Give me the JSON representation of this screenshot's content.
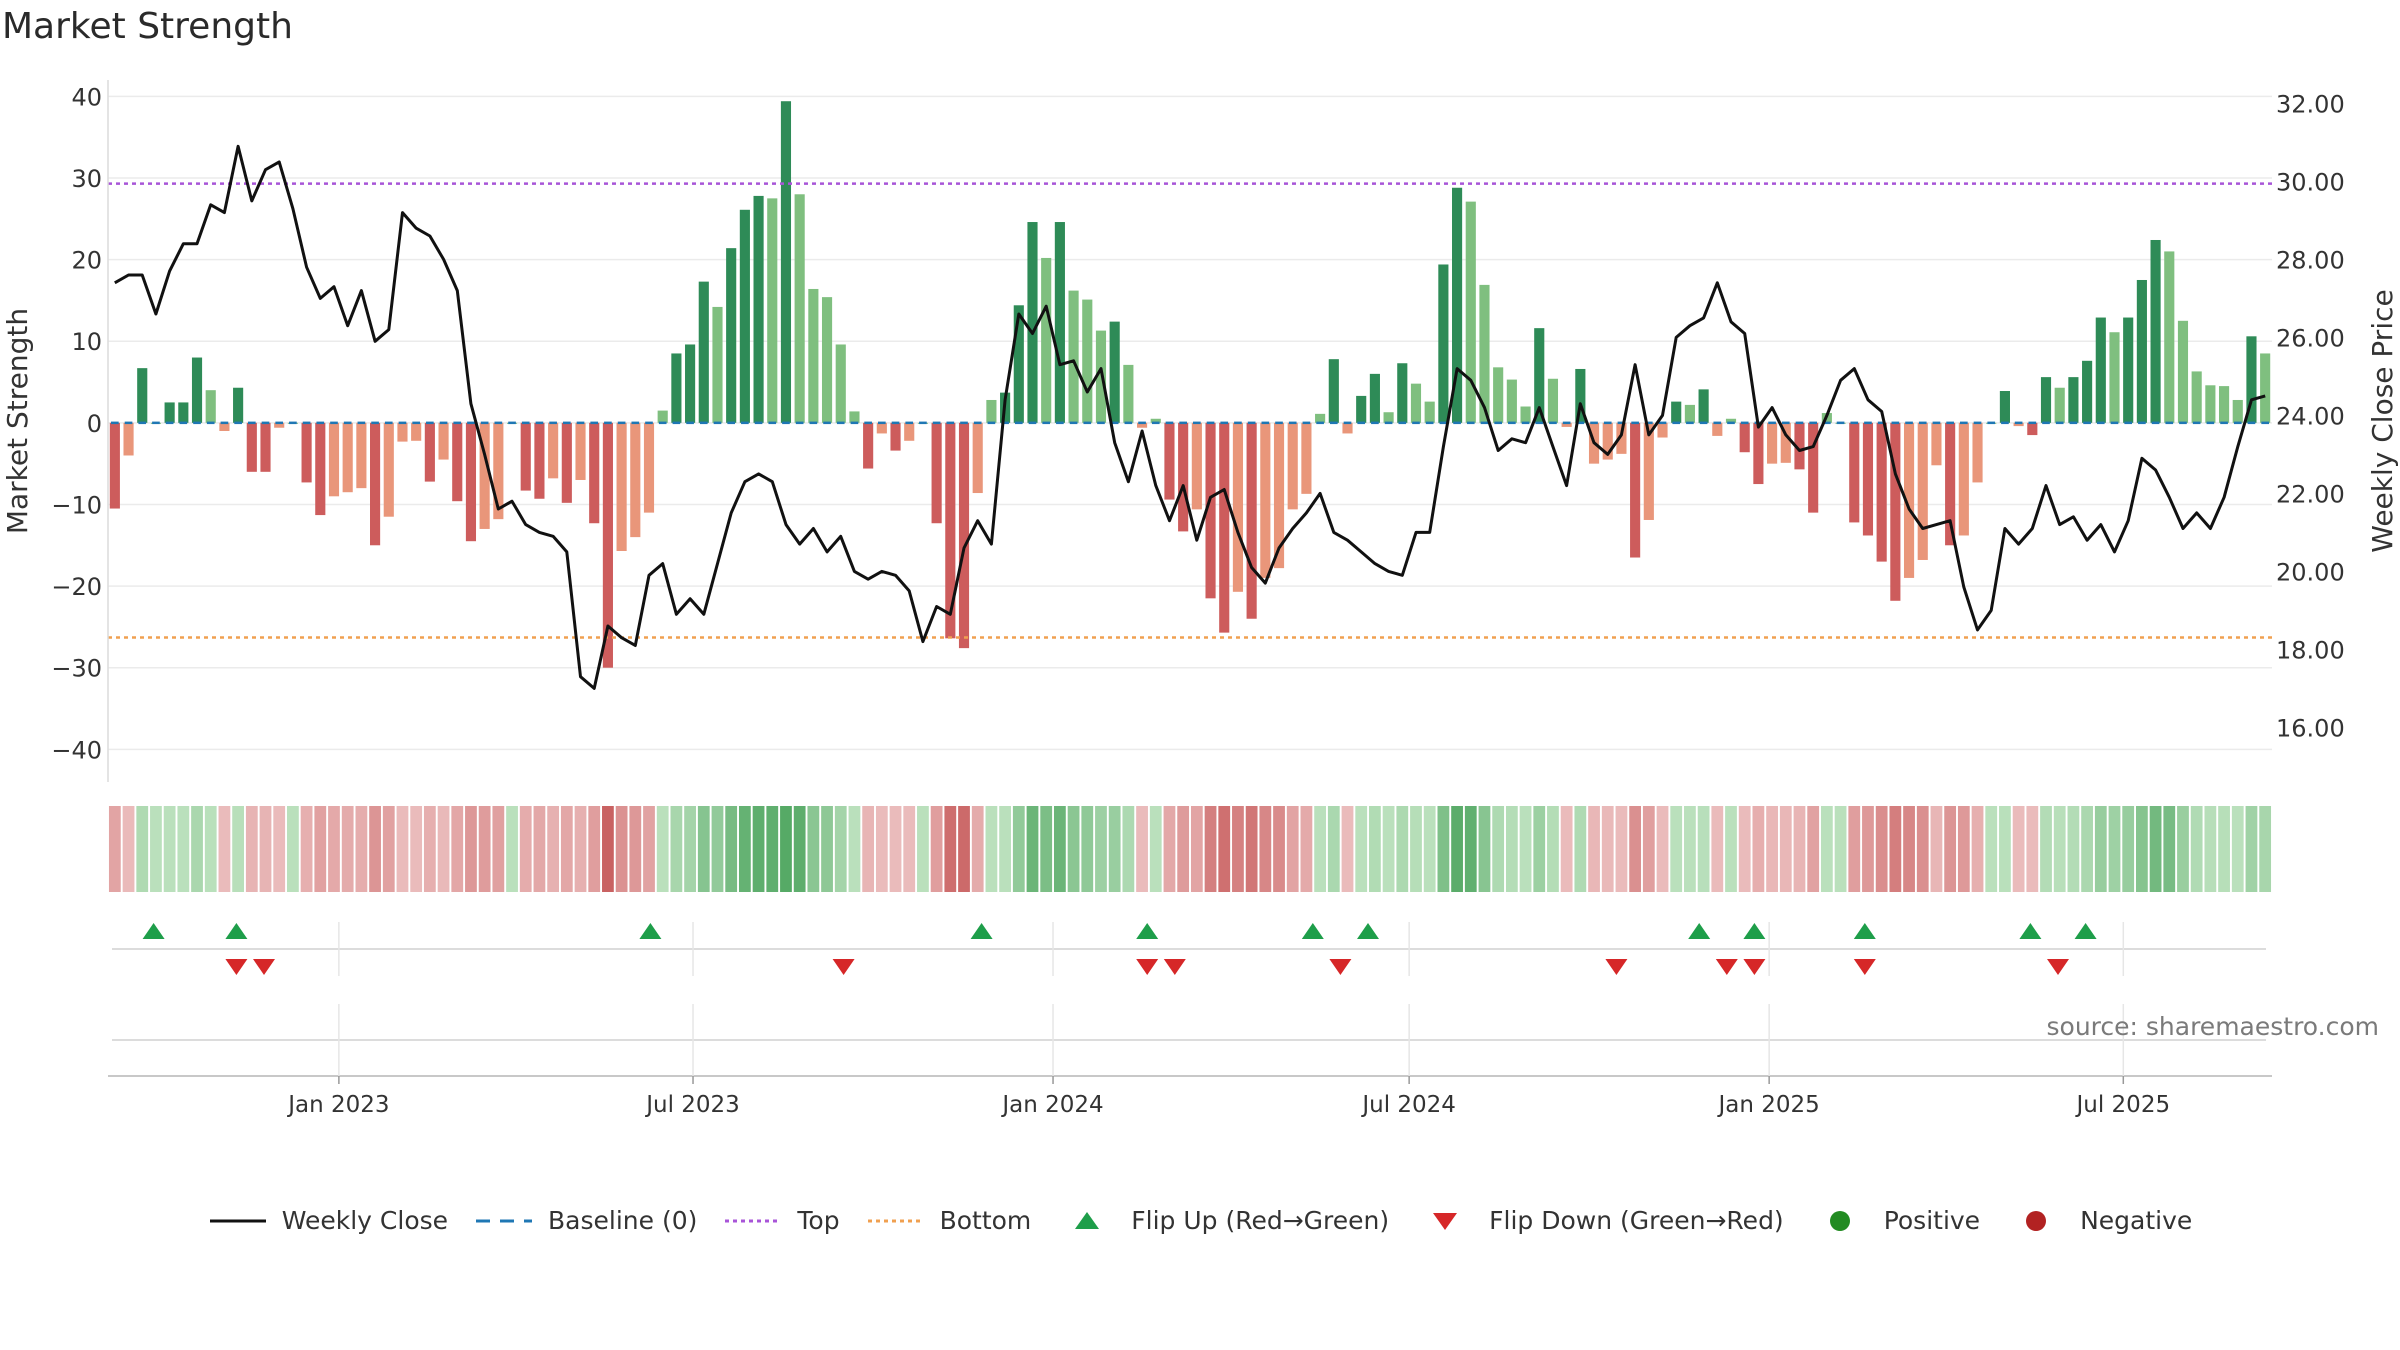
{
  "title": "Market Strength",
  "source": "source: sharemaestro.com",
  "colors": {
    "pos_dark": "#2e8b57",
    "pos_light": "#7fbf7f",
    "neg_dark": "#cd5c5c",
    "neg_light": "#e9967a",
    "top_line": "#a855d8",
    "bottom_line": "#f0a050",
    "baseline": "#1f77b4",
    "close": "#111111",
    "flip_up": "#1e9e4a",
    "flip_down": "#d62728",
    "positive_dot": "#228b22",
    "negative_dot": "#b22222"
  },
  "legend": [
    {
      "key": "close",
      "label": "Weekly Close"
    },
    {
      "key": "baseline",
      "label": "Baseline (0)"
    },
    {
      "key": "top",
      "label": "Top"
    },
    {
      "key": "bottom",
      "label": "Bottom"
    },
    {
      "key": "flip_up",
      "label": "Flip Up (Red→Green)"
    },
    {
      "key": "flip_down",
      "label": "Flip Down (Green→Red)"
    },
    {
      "key": "positive",
      "label": "Positive"
    },
    {
      "key": "negative",
      "label": "Negative"
    }
  ],
  "chart_data": {
    "type": "bar",
    "ylabel": "Market Strength",
    "y2label": "Weekly Close Price",
    "ylim": [
      -44,
      42
    ],
    "y2lim": [
      14.6,
      32.6
    ],
    "yticks": [
      40,
      30,
      20,
      10,
      0,
      -10,
      -20,
      -30,
      -40
    ],
    "yticklabels": [
      "40",
      "30",
      "20",
      "10",
      "0",
      "−10",
      "−20",
      "−30",
      "−40"
    ],
    "y2ticks": [
      32,
      30,
      28,
      26,
      24,
      22,
      20,
      18,
      16
    ],
    "y2ticklabels": [
      "32.00",
      "30.00",
      "28.00",
      "26.00",
      "24.00",
      "22.00",
      "20.00",
      "18.00",
      "16.00"
    ],
    "top_level": 29.3,
    "bottom_level": -26.3,
    "x_start": "2022-09-05",
    "x_end": "2025-09-15",
    "xticks": [
      "2023-01-01",
      "2023-07-01",
      "2024-01-01",
      "2024-07-01",
      "2025-01-01",
      "2025-07-01"
    ],
    "xticklabels": [
      "Jan 2023",
      "Jul 2023",
      "Jan 2024",
      "Jul 2024",
      "Jan 2025",
      "Jul 2025"
    ],
    "strength": [
      -10.5,
      -4,
      6.7,
      0,
      2.5,
      2.5,
      8,
      4,
      -1,
      4.3,
      -6,
      -6,
      -0.6,
      0,
      -7.3,
      -11.3,
      -9,
      -8.5,
      -8,
      -15,
      -11.5,
      -2.3,
      -2.2,
      -7.2,
      -4.5,
      -9.6,
      -14.5,
      -13,
      -11.8,
      0,
      -8.3,
      -9.3,
      -6.8,
      -9.8,
      -7,
      -12.3,
      -30,
      -15.7,
      -14,
      -11,
      1.5,
      8.5,
      9.6,
      17.3,
      14.2,
      21.4,
      26.1,
      27.8,
      27.5,
      39.4,
      28,
      16.4,
      15.4,
      9.6,
      1.4,
      -5.6,
      -1.3,
      -3.4,
      -2.2,
      0,
      -12.3,
      -26.4,
      -27.6,
      -8.6,
      2.8,
      3.7,
      14.4,
      24.6,
      20.2,
      24.6,
      16.2,
      15.1,
      11.3,
      12.4,
      7.1,
      -0.6,
      0.5,
      -9.4,
      -13.3,
      -10.6,
      -21.5,
      -25.7,
      -20.7,
      -24,
      -19,
      -17.8,
      -10.6,
      -8.7,
      1.1,
      7.8,
      -1.3,
      3.3,
      6,
      1.3,
      7.3,
      4.8,
      2.6,
      19.4,
      28.8,
      27.1,
      16.9,
      6.8,
      5.3,
      2,
      11.6,
      5.4,
      -0.5,
      6.6,
      -5,
      -4.5,
      -3.8,
      -16.5,
      -11.9,
      -1.8,
      2.6,
      2.2,
      4.1,
      -1.6,
      0.5,
      -3.6,
      -7.5,
      -5,
      -4.9,
      -5.7,
      -11,
      1.2,
      0,
      -12.2,
      -13.8,
      -17,
      -21.8,
      -19,
      -16.8,
      -5.2,
      -15,
      -13.8,
      -7.3,
      0,
      3.9,
      -0.4,
      -1.5,
      5.6,
      4.3,
      5.6,
      7.6,
      12.9,
      11.1,
      12.9,
      17.5,
      22.4,
      21,
      12.5,
      6.3,
      4.6,
      4.5,
      2.8,
      10.6,
      8.5
    ],
    "close": [
      27.4,
      27.6,
      27.6,
      26.6,
      27.7,
      28.4,
      28.4,
      29.4,
      29.2,
      30.9,
      29.5,
      30.3,
      30.5,
      29.3,
      27.8,
      27.0,
      27.3,
      26.3,
      27.2,
      25.9,
      26.2,
      29.2,
      28.8,
      28.6,
      28.0,
      27.2,
      24.3,
      23.0,
      21.6,
      21.8,
      21.2,
      21.0,
      20.9,
      20.5,
      17.3,
      17.0,
      18.6,
      18.3,
      18.1,
      19.9,
      20.2,
      18.9,
      19.3,
      18.9,
      20.2,
      21.5,
      22.3,
      22.5,
      22.3,
      21.2,
      20.7,
      21.1,
      20.5,
      20.9,
      20.0,
      19.8,
      20.0,
      19.9,
      19.5,
      18.2,
      19.1,
      18.9,
      20.6,
      21.3,
      20.7,
      24.4,
      26.6,
      26.1,
      26.8,
      25.3,
      25.4,
      24.6,
      25.2,
      23.3,
      22.3,
      23.6,
      22.2,
      21.3,
      22.2,
      20.8,
      21.9,
      22.1,
      21.0,
      20.1,
      19.7,
      20.6,
      21.1,
      21.5,
      22.0,
      21.0,
      20.8,
      20.5,
      20.2,
      20.0,
      19.9,
      21.0,
      21.0,
      23.2,
      25.2,
      24.9,
      24.2,
      23.1,
      23.4,
      23.3,
      24.2,
      23.2,
      22.2,
      24.3,
      23.3,
      23.0,
      23.5,
      25.3,
      23.5,
      24.0,
      26.0,
      26.3,
      26.5,
      27.4,
      26.4,
      26.1,
      23.7,
      24.2,
      23.5,
      23.1,
      23.2,
      24.0,
      24.9,
      25.2,
      24.4,
      24.1,
      22.5,
      21.6,
      21.1,
      21.2,
      21.3,
      19.6,
      18.5,
      19.0,
      21.1,
      20.7,
      21.1,
      22.2,
      21.2,
      21.4,
      20.8,
      21.2,
      20.5,
      21.3,
      22.9,
      22.6,
      21.9,
      21.1,
      21.5,
      21.1,
      21.9,
      23.2,
      24.4,
      24.5
    ],
    "flip_up": [
      1,
      4,
      19,
      31,
      37,
      43,
      45,
      57,
      59,
      63,
      69,
      71
    ],
    "flip_down": [
      4,
      5,
      26,
      37,
      38,
      44,
      54,
      58,
      59,
      63,
      70
    ]
  }
}
